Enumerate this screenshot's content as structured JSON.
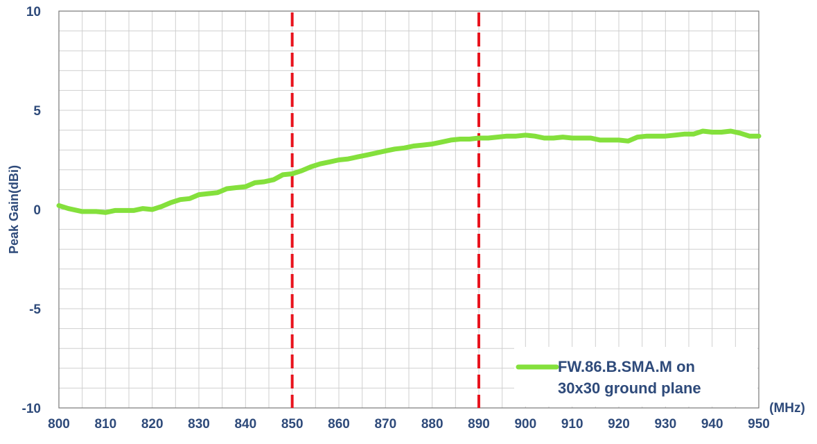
{
  "chart_data": {
    "type": "line",
    "title": "",
    "xlabel": "",
    "x_unit": "(MHz)",
    "ylabel": "Peak Gain(dBi)",
    "xlim": [
      800,
      950
    ],
    "ylim": [
      -10,
      10
    ],
    "x_ticks": [
      "800",
      "810",
      "820",
      "830",
      "840",
      "850",
      "860",
      "870",
      "880",
      "890",
      "900",
      "910",
      "920",
      "930",
      "940",
      "950"
    ],
    "y_ticks": [
      "10",
      "5",
      "0",
      "-5",
      "-10"
    ],
    "grid": true,
    "legend_position": "bottom-right",
    "markers": [
      {
        "x": 850,
        "style": "dashed",
        "color": "#e8141e"
      },
      {
        "x": 890,
        "style": "dashed",
        "color": "#e8141e"
      }
    ],
    "series": [
      {
        "name": "FW.86.B.SMA.M on\n30x30 ground plane",
        "legend_lines": [
          "FW.86.B.SMA.M on",
          "30x30 ground plane"
        ],
        "color": "#84e03c",
        "x": [
          800,
          802,
          805,
          808,
          810,
          812,
          814,
          816,
          818,
          820,
          822,
          824,
          826,
          828,
          830,
          832,
          834,
          836,
          838,
          840,
          842,
          844,
          846,
          848,
          850,
          852,
          854,
          856,
          858,
          860,
          862,
          864,
          866,
          868,
          870,
          872,
          874,
          876,
          878,
          880,
          882,
          884,
          886,
          888,
          890,
          892,
          894,
          896,
          898,
          900,
          902,
          904,
          906,
          908,
          910,
          912,
          914,
          916,
          918,
          920,
          922,
          924,
          926,
          928,
          930,
          932,
          934,
          936,
          938,
          940,
          942,
          944,
          946,
          948,
          950
        ],
        "y": [
          0.2,
          0.05,
          -0.1,
          -0.1,
          -0.15,
          -0.05,
          -0.05,
          -0.05,
          0.05,
          0.0,
          0.15,
          0.35,
          0.5,
          0.55,
          0.75,
          0.8,
          0.85,
          1.05,
          1.1,
          1.15,
          1.35,
          1.4,
          1.5,
          1.75,
          1.8,
          1.95,
          2.15,
          2.3,
          2.4,
          2.5,
          2.55,
          2.65,
          2.75,
          2.85,
          2.95,
          3.05,
          3.1,
          3.2,
          3.25,
          3.3,
          3.4,
          3.5,
          3.55,
          3.55,
          3.6,
          3.6,
          3.65,
          3.7,
          3.7,
          3.75,
          3.7,
          3.6,
          3.6,
          3.65,
          3.6,
          3.6,
          3.6,
          3.5,
          3.5,
          3.5,
          3.45,
          3.65,
          3.7,
          3.7,
          3.7,
          3.75,
          3.8,
          3.8,
          3.95,
          3.9,
          3.9,
          3.95,
          3.85,
          3.7,
          3.7
        ]
      }
    ]
  }
}
